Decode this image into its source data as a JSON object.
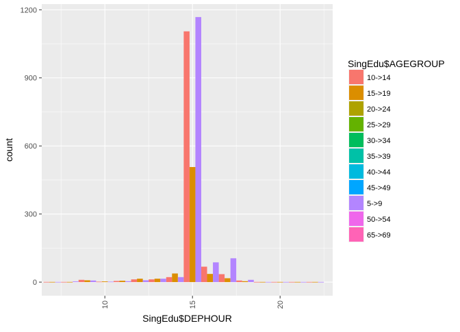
{
  "chart_data": {
    "type": "bar",
    "position": "dodge",
    "xlabel": "SingEdu$DEPHOUR",
    "ylabel": "count",
    "xlim": [
      6.4,
      23.0
    ],
    "ylim": [
      -60,
      1225
    ],
    "x_ticks": [
      10,
      15,
      20
    ],
    "y_ticks": [
      0,
      300,
      600,
      900,
      1200
    ],
    "bin_width": 1,
    "grid": true,
    "legend_position": "right",
    "legend": {
      "title": "SingEdu$AGEGROUP",
      "entries": [
        {
          "label": "10->14",
          "color": "#F8766D"
        },
        {
          "label": "15->19",
          "color": "#DB8E00"
        },
        {
          "label": "20->24",
          "color": "#AEA200"
        },
        {
          "label": "25->29",
          "color": "#64B200"
        },
        {
          "label": "30->34",
          "color": "#00BD5C"
        },
        {
          "label": "35->39",
          "color": "#00C1A7"
        },
        {
          "label": "40->44",
          "color": "#00BADE"
        },
        {
          "label": "45->49",
          "color": "#00A6FF"
        },
        {
          "label": "5->9",
          "color": "#B385FF"
        },
        {
          "label": "50->54",
          "color": "#EF67EB"
        },
        {
          "label": "65->69",
          "color": "#FF63B6"
        }
      ]
    },
    "series": [
      {
        "name": "10->14",
        "x": [
          7,
          8,
          9,
          10,
          11,
          12,
          13,
          14,
          15,
          16,
          17,
          18,
          19,
          20,
          21,
          22
        ],
        "values": [
          1,
          1,
          10,
          2,
          5,
          12,
          12,
          22,
          1105,
          68,
          35,
          7,
          1,
          1,
          1,
          1
        ]
      },
      {
        "name": "15->19",
        "x": [
          7,
          8,
          9,
          10,
          11,
          12,
          13,
          14,
          15,
          16,
          17,
          18,
          19,
          20,
          21,
          22
        ],
        "values": [
          1,
          1,
          8,
          3,
          6,
          15,
          15,
          38,
          507,
          36,
          17,
          4,
          1,
          1,
          1,
          1
        ]
      },
      {
        "name": "5->9",
        "x": [
          7,
          8,
          9,
          10,
          11,
          12,
          13,
          14,
          15,
          16,
          17,
          18,
          19,
          20,
          21,
          22
        ],
        "values": [
          1,
          3,
          7,
          2,
          4,
          8,
          15,
          22,
          1168,
          87,
          105,
          10,
          1,
          1,
          1,
          1
        ]
      }
    ]
  }
}
